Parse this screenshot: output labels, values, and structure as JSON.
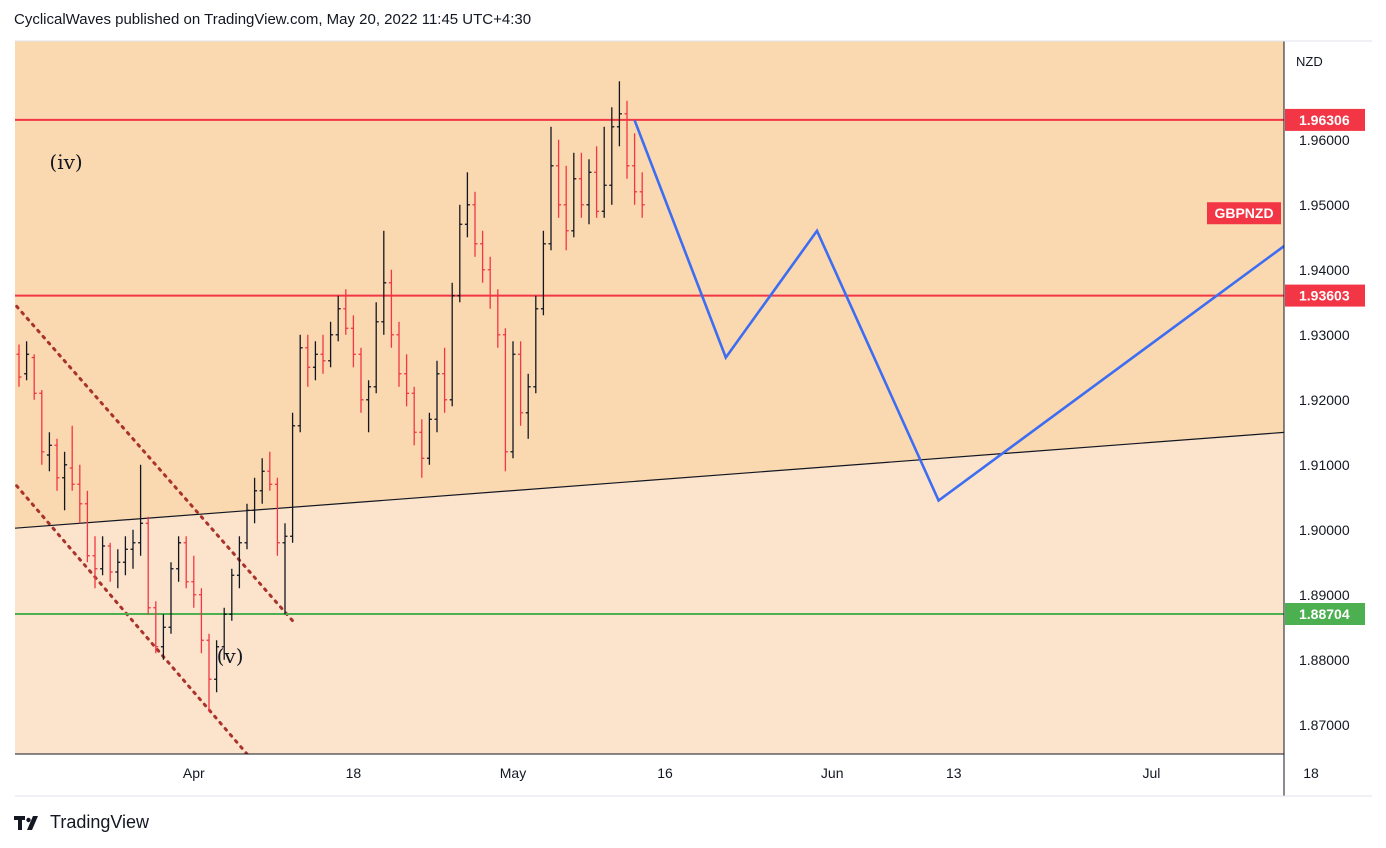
{
  "header": {
    "text": "CyclicalWaves published on TradingView.com, May 20, 2022 11:45 UTC+4:30"
  },
  "footer": {
    "brand": "TradingView"
  },
  "colors": {
    "bg_upper": "#fad8b0",
    "bg_lower": "#fce4cc",
    "resistance": "#f23645",
    "support": "#4caf50",
    "projection": "#3d6df2",
    "trendline": "#131722",
    "channel": "#a8332c",
    "candle_up": "#131722",
    "candle_down": "#f23645"
  },
  "chart_data": {
    "type": "candlestick",
    "symbol": "GBPNZD",
    "currency": "NZD",
    "y_ticks": [
      "1.96000",
      "1.95000",
      "1.94000",
      "1.93000",
      "1.92000",
      "1.91000",
      "1.90000",
      "1.89000",
      "1.88000",
      "1.87000"
    ],
    "x_ticks": [
      "Apr",
      "18",
      "May",
      "16",
      "Jun",
      "13",
      "Jul",
      "18"
    ],
    "ylim": [
      1.8655,
      1.9752
    ],
    "levels": [
      {
        "label": "1.96306",
        "value": 1.96306,
        "type": "resistance"
      },
      {
        "label": "1.93603",
        "value": 1.93603,
        "type": "resistance"
      },
      {
        "label": "1.88704",
        "value": 1.88704,
        "type": "support"
      }
    ],
    "symbol_badge": {
      "label": "GBPNZD",
      "value": 1.9487
    },
    "wave_labels": [
      {
        "text": "(iv)",
        "date_index": 4,
        "value": 1.9555
      },
      {
        "text": "(v)",
        "date_index": 26,
        "value": 1.8795
      }
    ],
    "candles_ohlc": [
      [
        1.927,
        1.9285,
        1.922,
        1.9235
      ],
      [
        1.924,
        1.929,
        1.923,
        1.927
      ],
      [
        1.9265,
        1.927,
        1.92,
        1.921
      ],
      [
        1.921,
        1.9215,
        1.91,
        1.912
      ],
      [
        1.9115,
        1.915,
        1.909,
        1.913
      ],
      [
        1.913,
        1.914,
        1.906,
        1.908
      ],
      [
        1.908,
        1.912,
        1.903,
        1.91
      ],
      [
        1.9095,
        1.916,
        1.906,
        1.907
      ],
      [
        1.907,
        1.91,
        1.901,
        1.904
      ],
      [
        1.904,
        1.906,
        1.895,
        1.896
      ],
      [
        1.896,
        1.899,
        1.891,
        1.894
      ],
      [
        1.894,
        1.899,
        1.893,
        1.8975
      ],
      [
        1.8975,
        1.898,
        1.892,
        1.8935
      ],
      [
        1.8935,
        1.897,
        1.891,
        1.895
      ],
      [
        1.895,
        1.899,
        1.893,
        1.897
      ],
      [
        1.897,
        1.9,
        1.894,
        1.898
      ],
      [
        1.898,
        1.91,
        1.896,
        1.901
      ],
      [
        1.901,
        1.902,
        1.887,
        1.888
      ],
      [
        1.888,
        1.889,
        1.881,
        1.882
      ],
      [
        1.882,
        1.887,
        1.88,
        1.885
      ],
      [
        1.885,
        1.895,
        1.884,
        1.894
      ],
      [
        1.894,
        1.899,
        1.892,
        1.898
      ],
      [
        1.898,
        1.899,
        1.891,
        1.892
      ],
      [
        1.892,
        1.896,
        1.888,
        1.89
      ],
      [
        1.89,
        1.891,
        1.881,
        1.883
      ],
      [
        1.883,
        1.884,
        1.872,
        1.877
      ],
      [
        1.877,
        1.883,
        1.875,
        1.882
      ],
      [
        1.882,
        1.888,
        1.88,
        1.887
      ],
      [
        1.887,
        1.894,
        1.886,
        1.893
      ],
      [
        1.893,
        1.899,
        1.891,
        1.898
      ],
      [
        1.898,
        1.904,
        1.897,
        1.903
      ],
      [
        1.903,
        1.908,
        1.901,
        1.906
      ],
      [
        1.906,
        1.911,
        1.904,
        1.909
      ],
      [
        1.909,
        1.912,
        1.906,
        1.907
      ],
      [
        1.907,
        1.908,
        1.896,
        1.898
      ],
      [
        1.898,
        1.901,
        1.887,
        1.899
      ],
      [
        1.899,
        1.918,
        1.898,
        1.916
      ],
      [
        1.916,
        1.93,
        1.915,
        1.928
      ],
      [
        1.928,
        1.93,
        1.922,
        1.925
      ],
      [
        1.925,
        1.929,
        1.923,
        1.927
      ],
      [
        1.927,
        1.93,
        1.924,
        1.926
      ],
      [
        1.926,
        1.932,
        1.925,
        1.93
      ],
      [
        1.93,
        1.936,
        1.929,
        1.934
      ],
      [
        1.934,
        1.937,
        1.93,
        1.931
      ],
      [
        1.931,
        1.933,
        1.925,
        1.927
      ],
      [
        1.927,
        1.928,
        1.918,
        1.92
      ],
      [
        1.92,
        1.923,
        1.915,
        1.922
      ],
      [
        1.922,
        1.935,
        1.921,
        1.932
      ],
      [
        1.932,
        1.946,
        1.93,
        1.938
      ],
      [
        1.938,
        1.94,
        1.928,
        1.93
      ],
      [
        1.93,
        1.932,
        1.922,
        1.924
      ],
      [
        1.924,
        1.927,
        1.919,
        1.921
      ],
      [
        1.921,
        1.922,
        1.913,
        1.915
      ],
      [
        1.915,
        1.917,
        1.908,
        1.911
      ],
      [
        1.911,
        1.918,
        1.91,
        1.917
      ],
      [
        1.917,
        1.926,
        1.915,
        1.924
      ],
      [
        1.924,
        1.928,
        1.918,
        1.92
      ],
      [
        1.92,
        1.938,
        1.919,
        1.936
      ],
      [
        1.936,
        1.95,
        1.935,
        1.947
      ],
      [
        1.947,
        1.955,
        1.945,
        1.95
      ],
      [
        1.95,
        1.952,
        1.942,
        1.944
      ],
      [
        1.944,
        1.946,
        1.938,
        1.94
      ],
      [
        1.94,
        1.942,
        1.934,
        1.936
      ],
      [
        1.936,
        1.937,
        1.928,
        1.93
      ],
      [
        1.93,
        1.931,
        1.909,
        1.912
      ],
      [
        1.912,
        1.929,
        1.911,
        1.927
      ],
      [
        1.927,
        1.929,
        1.916,
        1.918
      ],
      [
        1.918,
        1.924,
        1.914,
        1.922
      ],
      [
        1.922,
        1.936,
        1.921,
        1.934
      ],
      [
        1.934,
        1.946,
        1.933,
        1.944
      ],
      [
        1.944,
        1.962,
        1.943,
        1.956
      ],
      [
        1.956,
        1.96,
        1.948,
        1.95
      ],
      [
        1.95,
        1.956,
        1.943,
        1.946
      ],
      [
        1.946,
        1.958,
        1.945,
        1.954
      ],
      [
        1.954,
        1.958,
        1.948,
        1.95
      ],
      [
        1.95,
        1.957,
        1.947,
        1.955
      ],
      [
        1.955,
        1.959,
        1.948,
        1.949
      ],
      [
        1.949,
        1.962,
        1.948,
        1.953
      ],
      [
        1.953,
        1.965,
        1.95,
        1.962
      ],
      [
        1.962,
        1.969,
        1.959,
        1.964
      ],
      [
        1.964,
        1.966,
        1.954,
        1.956
      ],
      [
        1.956,
        1.961,
        1.95,
        1.952
      ],
      [
        1.952,
        1.955,
        1.948,
        1.95
      ]
    ],
    "projection_path": [
      {
        "index": 81,
        "value": 1.963
      },
      {
        "index": 93,
        "value": 1.9265
      },
      {
        "index": 105,
        "value": 1.946
      },
      {
        "index": 121,
        "value": 1.9045
      },
      {
        "index": 170,
        "value": 1.9467
      }
    ],
    "trendline": [
      {
        "index": -1,
        "value": 1.9002
      },
      {
        "index": 170,
        "value": 1.9153
      }
    ],
    "channel_upper": [
      {
        "index": -1,
        "value": 1.9353
      },
      {
        "index": 36,
        "value": 1.886
      }
    ],
    "channel_lower": [
      {
        "index": -1,
        "value": 1.9077
      },
      {
        "index": 30,
        "value": 1.8655
      }
    ],
    "x_tick_index": {
      "Apr": 23,
      "18": 44,
      "May": 65,
      "16": 85,
      "Jun": 107,
      "13": 123,
      "Jul": 149,
      "18b": 170
    }
  }
}
